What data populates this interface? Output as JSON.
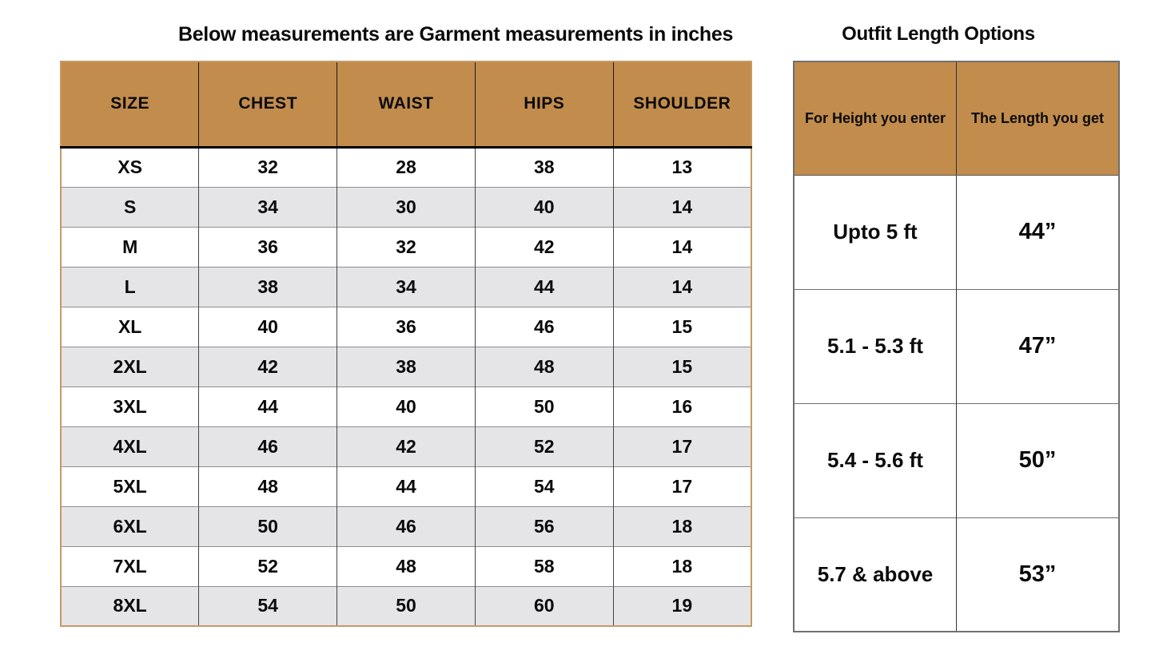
{
  "left_table": {
    "title": "Below measurements are Garment measurements in inches",
    "columns": [
      "SIZE",
      "CHEST",
      "WAIST",
      "HIPS",
      "SHOULDER"
    ],
    "rows": [
      [
        "XS",
        "32",
        "28",
        "38",
        "13"
      ],
      [
        "S",
        "34",
        "30",
        "40",
        "14"
      ],
      [
        "M",
        "36",
        "32",
        "42",
        "14"
      ],
      [
        "L",
        "38",
        "34",
        "44",
        "14"
      ],
      [
        "XL",
        "40",
        "36",
        "46",
        "15"
      ],
      [
        "2XL",
        "42",
        "38",
        "48",
        "15"
      ],
      [
        "3XL",
        "44",
        "40",
        "50",
        "16"
      ],
      [
        "4XL",
        "46",
        "42",
        "52",
        "17"
      ],
      [
        "5XL",
        "48",
        "44",
        "54",
        "17"
      ],
      [
        "6XL",
        "50",
        "46",
        "56",
        "18"
      ],
      [
        "7XL",
        "52",
        "48",
        "58",
        "18"
      ],
      [
        "8XL",
        "54",
        "50",
        "60",
        "19"
      ]
    ]
  },
  "right_table": {
    "title": "Outfit Length Options",
    "columns": [
      "For Height you enter",
      "The Length you get"
    ],
    "rows": [
      [
        "Upto 5 ft",
        "44”"
      ],
      [
        "5.1 - 5.3 ft",
        "47”"
      ],
      [
        "5.4 - 5.6 ft",
        "50”"
      ],
      [
        "5.7 & above",
        "53”"
      ]
    ]
  },
  "colors": {
    "header_bg": "#C28C4D",
    "alt_row_bg": "#E5E5E8",
    "left_table_border": "#C79A62",
    "right_table_border": "#6F6F6F",
    "text": "#0B0B0B"
  }
}
